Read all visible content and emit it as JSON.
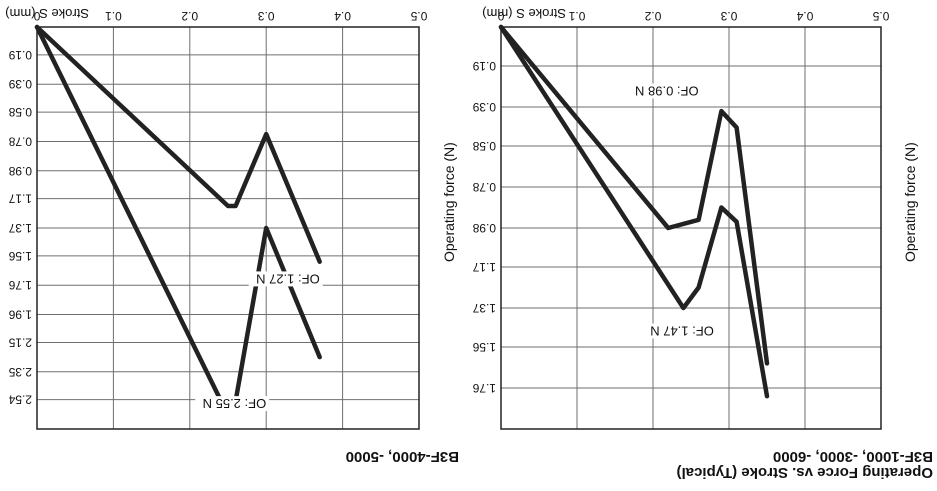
{
  "figure_orientation": "rotated-180",
  "colors": {
    "curve": "#222222",
    "grid": "#6f6f6f",
    "frame": "#222222",
    "background": "#ffffff"
  },
  "chart_data": [
    {
      "type": "line",
      "title": "Operating Force vs. Stroke (Typical)",
      "subtitle": "B3F-1000, -3000, -6000",
      "xlabel": "Stroke S (mm)",
      "ylabel": "Operating force (N)",
      "xlim": [
        0,
        0.5
      ],
      "ylim": [
        0,
        1.96
      ],
      "x_ticks": [
        "0",
        "0.1",
        "0.2",
        "0.3",
        "0.4",
        "0.5"
      ],
      "y_ticks": [
        "0.19",
        "0.39",
        "0.58",
        "0.78",
        "0.98",
        "1.17",
        "1.37",
        "1.56",
        "1.76"
      ],
      "grid": true,
      "series": [
        {
          "x": [
            0,
            0.24,
            0.26,
            0.29,
            0.31,
            0.35
          ],
          "y": [
            0,
            1.37,
            1.27,
            0.88,
            0.95,
            1.8
          ]
        },
        {
          "x": [
            0,
            0.22,
            0.26,
            0.29,
            0.31,
            0.35
          ],
          "y": [
            0,
            0.98,
            0.94,
            0.41,
            0.49,
            1.64
          ]
        }
      ],
      "annotations": [
        {
          "text": "OF: 1.47 N",
          "x": 0.28,
          "y": 1.47
        },
        {
          "text": "OF: 0.98 N",
          "x": 0.26,
          "y": 0.3
        }
      ]
    },
    {
      "type": "line",
      "title": "",
      "subtitle": "B3F-4000, -5000",
      "xlabel": "Stroke S (mm)",
      "ylabel": "Operating force (N)",
      "xlim": [
        0,
        0.5
      ],
      "ylim": [
        0,
        2.74
      ],
      "x_ticks": [
        "0",
        "0.1",
        "0.2",
        "0.3",
        "0.4",
        "0.5"
      ],
      "y_ticks": [
        "0.19",
        "0.39",
        "0.58",
        "0.78",
        "0.98",
        "1.17",
        "1.37",
        "1.56",
        "1.76",
        "1.96",
        "2.15",
        "2.35",
        "2.54"
      ],
      "grid": true,
      "series": [
        {
          "x": [
            0,
            0.24,
            0.26,
            0.3,
            0.37
          ],
          "y": [
            0,
            2.54,
            2.55,
            1.37,
            2.25
          ]
        },
        {
          "x": [
            0,
            0.25,
            0.26,
            0.3,
            0.37
          ],
          "y": [
            0,
            1.22,
            1.22,
            0.73,
            1.6
          ]
        }
      ],
      "annotations": [
        {
          "text": "OF: 2.55 N",
          "x": 0.3,
          "y": 2.55
        },
        {
          "text": "OF: 1.27 N",
          "x": 0.37,
          "y": 1.7
        }
      ]
    }
  ]
}
